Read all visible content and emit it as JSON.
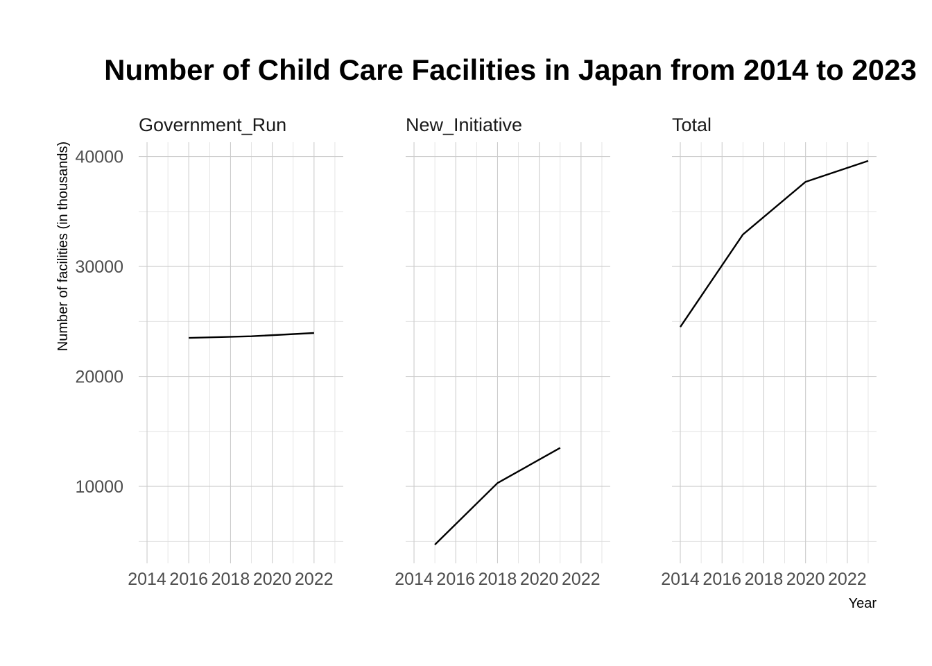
{
  "chart_data": {
    "type": "line",
    "title": "Number of Child Care Facilities in Japan from 2014 to 2023",
    "xlabel": "Year",
    "ylabel": "Number of facilities (in thousands)",
    "xlim": [
      2013.6,
      2023.4
    ],
    "ylim": [
      3000,
      41300
    ],
    "x_ticks": [
      2014,
      2016,
      2018,
      2020,
      2022
    ],
    "y_ticks": [
      10000,
      20000,
      30000,
      40000
    ],
    "grid": true,
    "legend": "none",
    "panels": [
      {
        "name": "Government_Run",
        "x": [
          2016,
          2019,
          2022
        ],
        "y": [
          23500,
          23650,
          23950
        ]
      },
      {
        "name": "New_Initiative",
        "x": [
          2015,
          2018,
          2021
        ],
        "y": [
          4700,
          10300,
          13500
        ]
      },
      {
        "name": "Total",
        "x": [
          2014,
          2017,
          2020,
          2023
        ],
        "y": [
          24500,
          32900,
          37700,
          39600
        ]
      }
    ]
  }
}
